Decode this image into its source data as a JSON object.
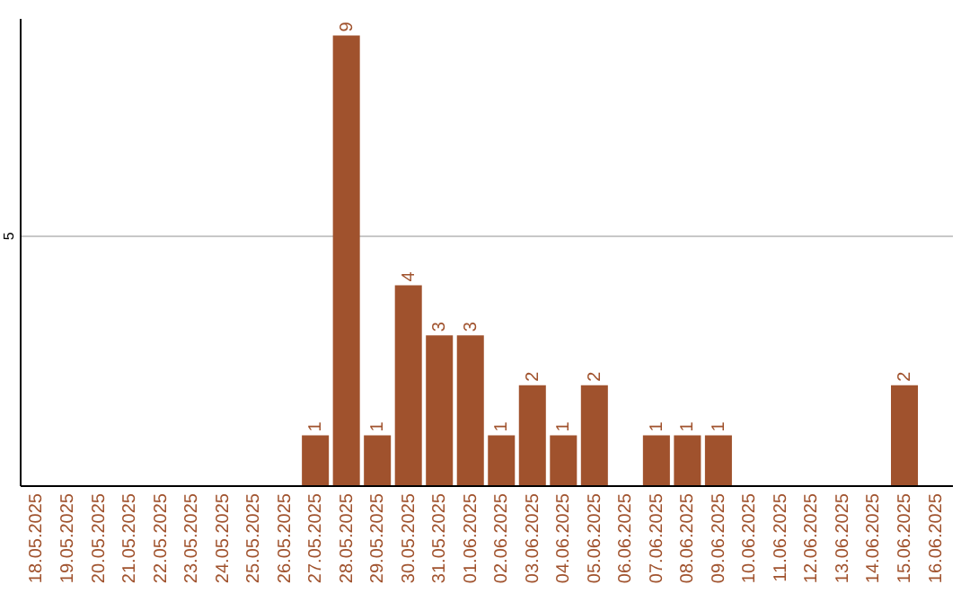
{
  "chart_data": {
    "type": "bar",
    "categories": [
      "18.05.2025",
      "19.05.2025",
      "20.05.2025",
      "21.05.2025",
      "22.05.2025",
      "23.05.2025",
      "24.05.2025",
      "25.05.2025",
      "26.05.2025",
      "27.05.2025",
      "28.05.2025",
      "29.05.2025",
      "30.05.2025",
      "31.05.2025",
      "01.06.2025",
      "02.06.2025",
      "03.06.2025",
      "04.06.2025",
      "05.06.2025",
      "06.06.2025",
      "07.06.2025",
      "08.06.2025",
      "09.06.2025",
      "10.06.2025",
      "11.06.2025",
      "12.06.2025",
      "13.06.2025",
      "14.06.2025",
      "15.06.2025",
      "16.06.2025"
    ],
    "values": [
      0,
      0,
      0,
      0,
      0,
      0,
      0,
      0,
      0,
      1,
      9,
      1,
      4,
      3,
      3,
      1,
      2,
      1,
      2,
      0,
      1,
      1,
      1,
      0,
      0,
      0,
      0,
      0,
      2,
      0
    ],
    "value_labels": [
      null,
      null,
      null,
      null,
      null,
      null,
      null,
      null,
      null,
      "1",
      "9",
      "1",
      "4",
      "3",
      "3",
      "1",
      "2",
      "1",
      "2",
      null,
      "1",
      "1",
      "1",
      null,
      null,
      null,
      null,
      null,
      "2",
      null
    ],
    "color": "#a0522d",
    "ylim": [
      0,
      9.35
    ],
    "yticks": [
      5
    ],
    "grid": "y"
  }
}
